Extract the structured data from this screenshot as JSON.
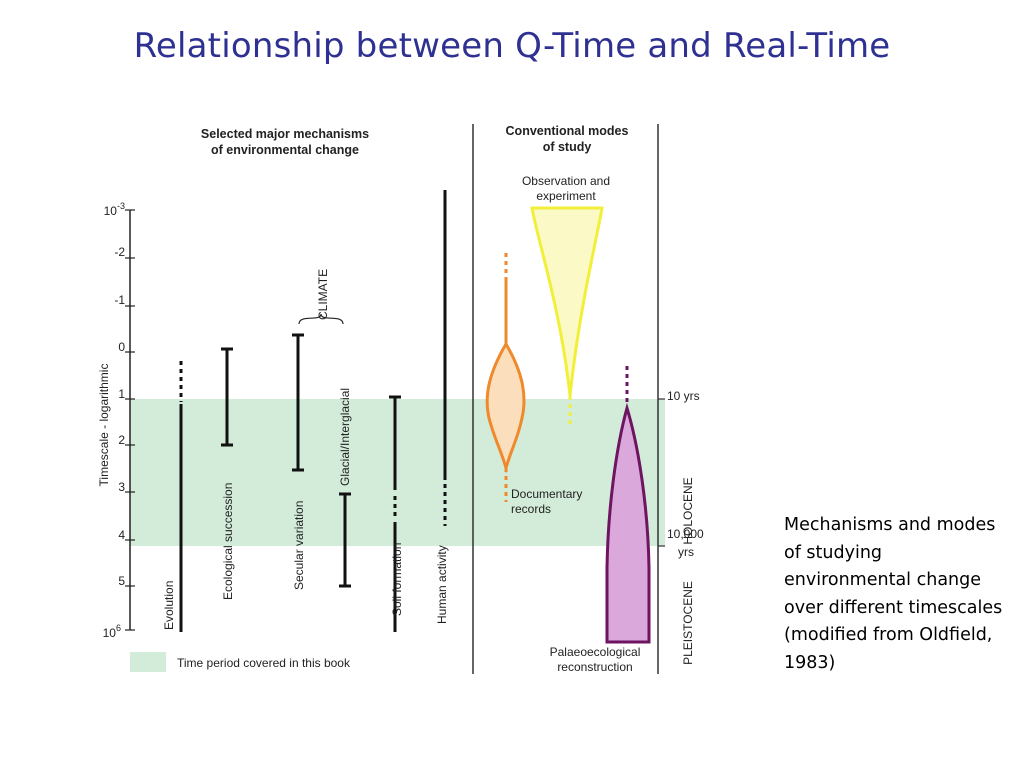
{
  "slide": {
    "title": "Relationship between Q-Time and Real-Time",
    "caption": "Mechanisms and modes of studying environmental change over different timescales (modified from Oldfield, 1983)"
  },
  "figure": {
    "left_header": [
      "Selected major mechanisms",
      "of environmental change"
    ],
    "right_header": [
      "Conventional modes",
      "of study"
    ],
    "axis": {
      "label": "Timescale - logarithmic",
      "ticks": [
        "10",
        "-2",
        "-1",
        "0",
        "1",
        "2",
        "3",
        "4",
        "5",
        "10"
      ],
      "tick_first_superscript": "-3",
      "tick_last_superscript": "6"
    },
    "mechanisms": [
      "Evolution",
      "Ecological succession",
      "Secular variation",
      "Glacial/Interglacial",
      "Soil formation",
      "Human activity"
    ],
    "climate_label": "CLIMATE",
    "modes": {
      "observation": [
        "Observation and",
        "experiment"
      ],
      "documentary": [
        "Documentary",
        "records"
      ],
      "palaeo": [
        "Palaeoecological",
        "reconstruction"
      ]
    },
    "right_axis": {
      "ten_yrs": "10 yrs",
      "ten_thousand": [
        "10,000",
        "yrs"
      ],
      "holocene": "HOLOCENE",
      "pleistocene": "PLEISTOCENE"
    },
    "legend": "Time period covered in this book",
    "colors": {
      "band": "#d3ecd9",
      "observation": "#f2ef3a",
      "observation_fill": "#fbf9c6",
      "documentary": "#ee8a2c",
      "documentary_fill": "#fbdfbd",
      "palaeo": "#6d1560",
      "palaeo_fill": "#dba8dc",
      "title": "#2e3192"
    }
  }
}
